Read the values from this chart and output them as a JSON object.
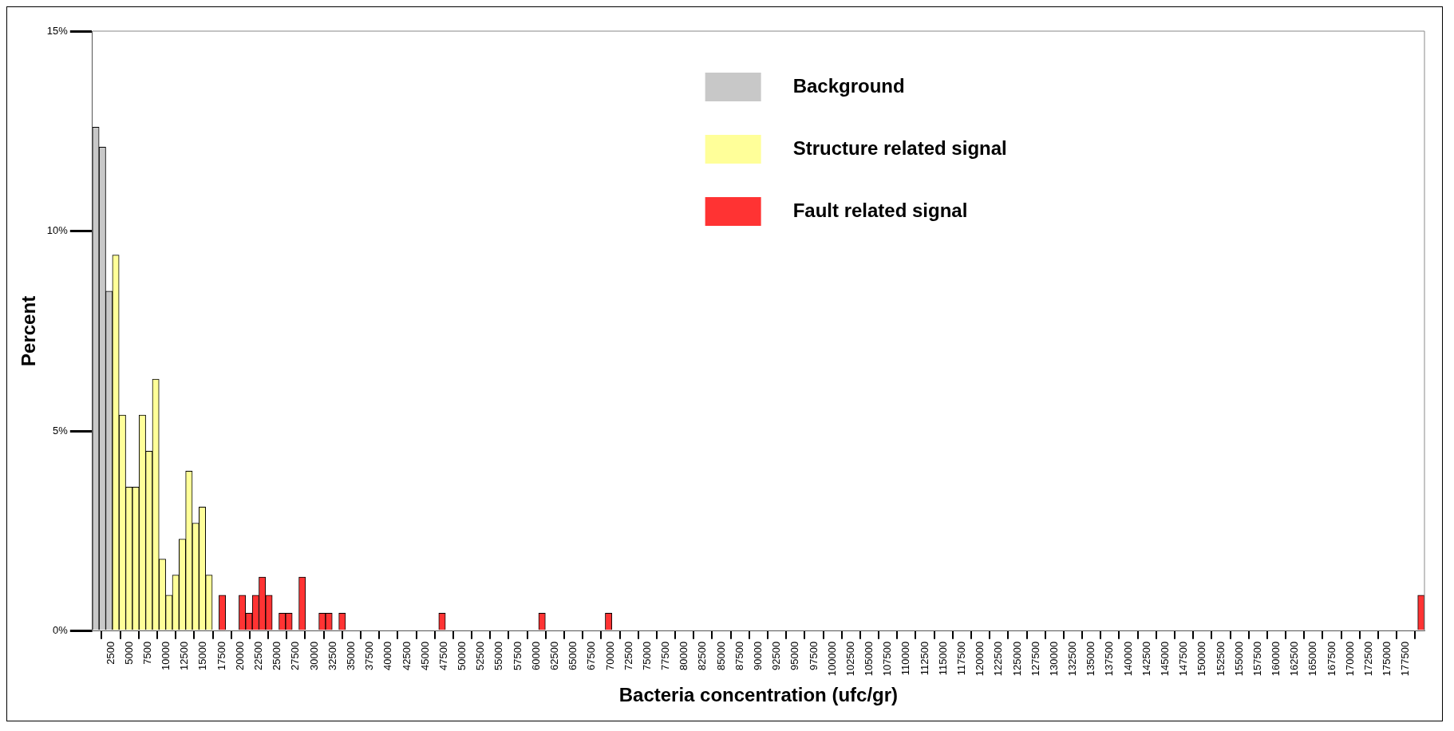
{
  "chart_data": {
    "type": "histogram",
    "xlabel": "Bacteria concentration (ufc/gr)",
    "ylabel": "Percent",
    "bins": [
      0,
      900,
      1800,
      2700,
      3600,
      4500,
      5400,
      6300,
      7200,
      8100,
      9000,
      9900,
      10800,
      11700,
      12600,
      13500,
      14400,
      15300,
      16200,
      17100,
      18000,
      18900,
      19800,
      20700,
      21600,
      22500,
      23400,
      24300,
      25200,
      26100,
      27000,
      27900,
      28800,
      29700,
      30600,
      31500,
      32400,
      33300,
      34200,
      35100,
      36000,
      36900,
      37800,
      38700,
      39600,
      40500,
      41400,
      42300,
      43200,
      44100,
      45000,
      45900,
      46800,
      47700,
      48600,
      49500,
      50400,
      51300,
      52200,
      53100,
      54000,
      54900,
      55800,
      56700,
      57600,
      58500,
      59400,
      60300,
      61200,
      62100,
      63000,
      63900,
      64800,
      65700,
      66600,
      67500,
      68400,
      69300,
      70200,
      71100,
      72000,
      72900,
      73800,
      74700,
      75600,
      76500,
      77400,
      78300,
      79200,
      80100,
      81000,
      81900,
      82800,
      83700,
      84600,
      85500,
      86400,
      87300,
      88200,
      89100,
      90000,
      90900,
      91800,
      92700,
      93600,
      94500,
      95400,
      96300,
      97200,
      98100,
      99000,
      99900,
      100800,
      101700,
      102600,
      103500,
      104400,
      105300,
      106200,
      107100,
      108000,
      108900,
      109800,
      110700,
      111600,
      112500,
      113400,
      114300,
      115200,
      116100,
      117000,
      117900,
      118800,
      119700,
      120600,
      121500,
      122400,
      123300,
      124200,
      125100,
      126000,
      126900,
      127800,
      128700,
      129600,
      130500,
      131400,
      132300,
      133200,
      134100,
      135000,
      135900,
      136800,
      137700,
      138600,
      139500,
      140400,
      141300,
      142200,
      143100,
      144000,
      144900,
      145800,
      146700,
      147600,
      148500,
      149400,
      150300,
      151200,
      152100,
      153000,
      153900,
      154800,
      155700,
      156600,
      157500,
      158400,
      159300,
      160200,
      161100,
      162000,
      162900,
      163800,
      164700,
      165600,
      166500,
      167400,
      168300,
      169200,
      170100,
      171000,
      171900,
      172800,
      173700,
      174600,
      175500,
      176400,
      177300,
      178200,
      179100,
      180000
    ],
    "series": [
      {
        "name": "Background",
        "color": "#c8c8c8",
        "values": [
          12.6,
          12.1,
          8.5,
          null,
          null,
          null,
          null,
          null,
          null,
          null,
          null,
          null,
          null,
          null,
          null,
          null,
          null,
          null,
          null,
          null,
          null,
          null,
          null,
          null,
          null,
          null,
          null,
          null,
          null,
          null,
          null,
          null,
          null,
          null,
          null,
          null,
          null,
          null,
          null,
          null,
          null,
          null,
          null,
          null,
          null,
          null,
          null,
          null,
          null,
          null,
          null,
          null,
          null,
          null,
          null,
          null,
          null,
          null,
          null,
          null,
          null,
          null,
          null,
          null,
          null,
          null,
          null,
          null,
          null,
          null,
          null,
          null,
          null,
          null,
          null,
          null,
          null,
          null,
          null,
          null,
          null,
          null,
          null,
          null,
          null,
          null,
          null,
          null,
          null,
          null,
          null,
          null,
          null,
          null,
          null,
          null,
          null,
          null,
          null,
          null,
          null,
          null,
          null,
          null,
          null,
          null,
          null,
          null,
          null,
          null,
          null,
          null,
          null,
          null,
          null,
          null,
          null,
          null,
          null,
          null,
          null,
          null,
          null,
          null,
          null,
          null,
          null,
          null,
          null,
          null,
          null,
          null,
          null,
          null,
          null,
          null,
          null,
          null,
          null,
          null,
          null,
          null,
          null,
          null,
          null,
          null,
          null,
          null,
          null,
          null,
          null,
          null,
          null,
          null,
          null,
          null,
          null,
          null,
          null,
          null,
          null,
          null,
          null,
          null,
          null,
          null,
          null,
          null,
          null,
          null,
          null,
          null,
          null,
          null,
          null,
          null,
          null,
          null,
          null,
          null,
          null,
          null,
          null,
          null,
          null,
          null,
          null,
          null,
          null,
          null,
          null,
          null,
          null,
          null,
          null,
          null,
          null,
          null,
          null,
          null
        ]
      },
      {
        "name": "Structure related signal",
        "color": "#ffff99",
        "values": [
          null,
          null,
          null,
          9.4,
          5.4,
          3.6,
          3.6,
          5.4,
          4.5,
          6.3,
          1.8,
          0.9,
          1.4,
          2.3,
          4.0,
          2.7,
          3.1,
          1.4,
          null,
          null,
          null,
          null,
          null,
          null,
          null,
          null,
          null,
          null,
          null,
          null,
          null,
          null,
          null,
          null,
          null,
          null,
          null,
          null,
          null,
          null,
          null,
          null,
          null,
          null,
          null,
          null,
          null,
          null,
          null,
          null,
          null,
          null,
          null,
          null,
          null,
          null,
          null,
          null,
          null,
          null,
          null,
          null,
          null,
          null,
          null,
          null,
          null,
          null,
          null,
          null,
          null,
          null,
          null,
          null,
          null,
          null,
          null,
          null,
          null,
          null,
          null,
          null,
          null,
          null,
          null,
          null,
          null,
          null,
          null,
          null,
          null,
          null,
          null,
          null,
          null,
          null,
          null,
          null,
          null,
          null,
          null,
          null,
          null,
          null,
          null,
          null,
          null,
          null,
          null,
          null,
          null,
          null,
          null,
          null,
          null,
          null,
          null,
          null,
          null,
          null,
          null,
          null,
          null,
          null,
          null,
          null,
          null,
          null,
          null,
          null,
          null,
          null,
          null,
          null,
          null,
          null,
          null,
          null,
          null,
          null,
          null,
          null,
          null,
          null,
          null,
          null,
          null,
          null,
          null,
          null,
          null,
          null,
          null,
          null,
          null,
          null,
          null,
          null,
          null,
          null,
          null,
          null,
          null,
          null,
          null,
          null,
          null,
          null,
          null,
          null,
          null,
          null,
          null,
          null,
          null,
          null,
          null,
          null,
          null,
          null,
          null,
          null,
          null,
          null,
          null,
          null,
          null,
          null,
          null,
          null,
          null,
          null,
          null,
          null,
          null,
          null,
          null,
          null,
          null,
          null
        ]
      },
      {
        "name": "Fault related signal",
        "color": "#ff3333",
        "values": [
          null,
          null,
          null,
          null,
          null,
          null,
          null,
          null,
          null,
          null,
          null,
          null,
          null,
          null,
          null,
          null,
          null,
          null,
          0,
          0.9,
          0,
          0,
          0.9,
          0.45,
          0.9,
          1.35,
          0.9,
          0,
          0.45,
          0.45,
          0,
          1.35,
          0,
          0,
          0.45,
          0.45,
          0,
          0.45,
          0,
          0,
          0,
          0,
          0,
          0,
          0,
          0,
          0,
          0,
          0,
          0,
          0,
          0,
          0.45,
          0,
          0,
          0,
          0,
          0,
          0,
          0,
          0,
          0,
          0,
          0,
          0,
          0,
          0,
          0.45,
          0,
          0,
          0,
          0,
          0,
          0,
          0,
          0,
          0,
          0.45,
          0,
          0,
          0,
          0,
          0,
          0,
          0,
          0,
          0,
          0,
          0,
          0,
          0,
          0,
          0,
          0,
          0,
          0,
          0,
          0,
          0,
          0,
          0,
          0,
          0,
          0,
          0,
          0,
          0,
          0,
          0,
          0,
          0,
          0,
          0,
          0,
          0,
          0,
          0,
          0,
          0,
          0,
          0,
          0,
          0,
          0,
          0,
          0,
          0,
          0,
          0,
          0,
          0,
          0,
          0,
          0,
          0,
          0,
          0,
          0,
          0,
          0,
          0,
          0,
          0,
          0,
          0,
          0,
          0,
          0,
          0,
          0,
          0,
          0,
          0,
          0,
          0,
          0,
          0,
          0,
          0,
          0,
          0,
          0,
          0,
          0,
          0,
          0,
          0,
          0,
          0,
          0,
          0,
          0,
          0,
          0,
          0,
          0,
          0,
          0,
          0,
          0,
          0,
          0,
          0,
          0,
          0,
          0,
          0,
          0,
          0,
          0,
          0,
          0,
          0,
          0,
          0,
          0,
          0,
          0,
          0,
          0.9
        ]
      }
    ],
    "xlim": [
      0,
      180000
    ],
    "xticks": [
      2500,
      5000,
      7500,
      10000,
      12500,
      15000,
      17500,
      20000,
      22500,
      25000,
      27500,
      30000,
      32500,
      35000,
      37500,
      40000,
      42500,
      45000,
      47500,
      50000,
      52500,
      55000,
      57500,
      60000,
      62500,
      65000,
      67500,
      70000,
      72500,
      75000,
      77500,
      80000,
      82500,
      85000,
      87500,
      90000,
      92500,
      95000,
      97500,
      100000,
      102500,
      105000,
      107500,
      110000,
      112500,
      115000,
      117500,
      120000,
      122500,
      125000,
      127500,
      130000,
      132500,
      135000,
      137500,
      140000,
      142500,
      145000,
      147500,
      150000,
      152500,
      155000,
      157500,
      160000,
      162500,
      165000,
      167500,
      170000,
      172500,
      175000,
      177500
    ],
    "ylim": [
      0,
      15
    ],
    "yticks": [
      {
        "value": 0,
        "label": "0%"
      },
      {
        "value": 5,
        "label": "5%"
      },
      {
        "value": 10,
        "label": "10%"
      },
      {
        "value": 15,
        "label": "15%"
      }
    ],
    "grid": false,
    "legend": "top"
  }
}
